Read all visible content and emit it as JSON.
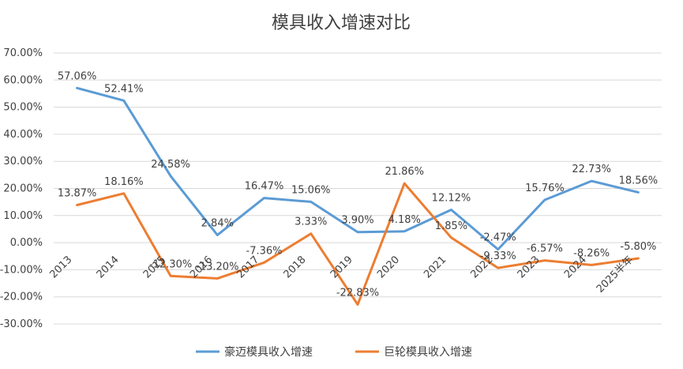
{
  "chart_data": {
    "type": "line",
    "title": "模具收入增速对比",
    "categories": [
      "2013",
      "2014",
      "2015",
      "2016",
      "2017",
      "2018",
      "2019",
      "2020",
      "2021",
      "2022",
      "2023",
      "2024",
      "2025半年"
    ],
    "ylim": [
      -30,
      70
    ],
    "yticks": [
      -30,
      -20,
      -10,
      0,
      10,
      20,
      30,
      40,
      50,
      60,
      70
    ],
    "ytick_labels": [
      "-30.00%",
      "-20.00%",
      "-10.00%",
      "0.00%",
      "10.00%",
      "20.00%",
      "30.00%",
      "40.00%",
      "50.00%",
      "60.00%",
      "70.00%"
    ],
    "grid": true,
    "legend": "bottom",
    "series": [
      {
        "name": "豪迈模具收入增速",
        "color": "#5B9BD5",
        "values": [
          57.06,
          52.41,
          24.58,
          2.84,
          16.47,
          15.06,
          3.9,
          4.18,
          12.12,
          -2.47,
          15.76,
          22.73,
          18.56
        ],
        "labels": [
          "57.06%",
          "52.41%",
          "24.58%",
          "2.84%",
          "16.47%",
          "15.06%",
          "3.90%",
          "4.18%",
          "12.12%",
          "-2.47%",
          "15.76%",
          "22.73%",
          "18.56%"
        ]
      },
      {
        "name": "巨轮模具收入增速",
        "color": "#ED7D31",
        "values": [
          13.87,
          18.16,
          -12.3,
          -13.2,
          -7.36,
          3.33,
          -22.83,
          21.86,
          1.85,
          -9.33,
          -6.57,
          -8.26,
          -5.8
        ],
        "labels": [
          "13.87%",
          "18.16%",
          "-12.30%",
          "-13.20%",
          "-7.36%",
          "3.33%",
          "-22.83%",
          "21.86%",
          "1.85%",
          "-9.33%",
          "-6.57%",
          "-8.26%",
          "-5.80%"
        ]
      }
    ]
  }
}
